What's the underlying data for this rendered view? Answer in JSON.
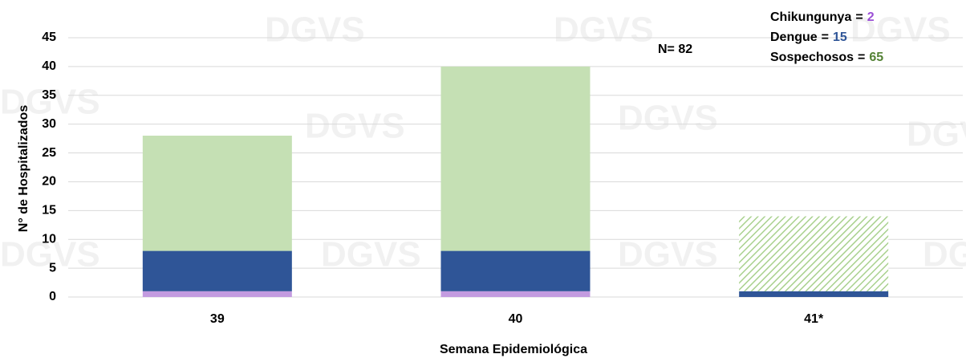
{
  "chart_data": {
    "type": "bar",
    "stacked": true,
    "categories": [
      "39",
      "40",
      "41*"
    ],
    "series": [
      {
        "name": "Chikungunya",
        "color": "#c39be0",
        "values": [
          1,
          1,
          0
        ],
        "total": 2,
        "total_color": "#9b4fd6"
      },
      {
        "name": "Dengue",
        "color": "#2f5597",
        "values": [
          7,
          7,
          1
        ],
        "total": 15,
        "total_color": "#2f5597"
      },
      {
        "name": "Sospechosos",
        "color": "#c5e0b4",
        "values": [
          20,
          32,
          13
        ],
        "total": 65,
        "total_color": "#548235",
        "hatched": [
          false,
          false,
          true
        ]
      }
    ],
    "legend_sign": "=",
    "annotation": "N= 82",
    "watermark": "DGVS",
    "xlabel": "Semana Epidemiológica",
    "ylabel": "N° de Hospitalizados",
    "ylim": [
      0,
      45
    ],
    "yticks": [
      0,
      5,
      10,
      15,
      20,
      25,
      30,
      35,
      40,
      45
    ],
    "grid": true
  }
}
